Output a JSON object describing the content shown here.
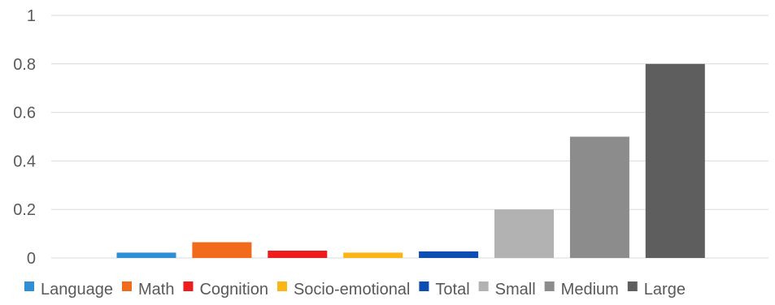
{
  "chart_data": {
    "type": "bar",
    "categories": [
      "Language",
      "Math",
      "Cognition",
      "Socio-emotional",
      "Total",
      "Small",
      "Medium",
      "Large"
    ],
    "values": [
      0.022,
      0.065,
      0.03,
      0.022,
      0.027,
      0.2,
      0.5,
      0.8
    ],
    "colors": [
      "#2e8fd6",
      "#f26a1b",
      "#ee1c1c",
      "#fbb514",
      "#0b4db3",
      "#b2b2b2",
      "#8c8c8c",
      "#5e5e5e"
    ],
    "ylim": [
      0,
      1
    ],
    "yticks": [
      0,
      0.2,
      0.4,
      0.6,
      0.8,
      1
    ],
    "ytick_labels": [
      "0",
      "0.2",
      "0.4",
      "0.6",
      "0.8",
      "1"
    ],
    "grid": true,
    "gridline_color": "#d9d9d9",
    "text_color": "#595959",
    "legend_position": "bottom",
    "legend": [
      "Language",
      "Math",
      "Cognition",
      "Socio-emotional",
      "Total",
      "Small",
      "Medium",
      "Large"
    ],
    "title": "",
    "xlabel": "",
    "ylabel": ""
  }
}
